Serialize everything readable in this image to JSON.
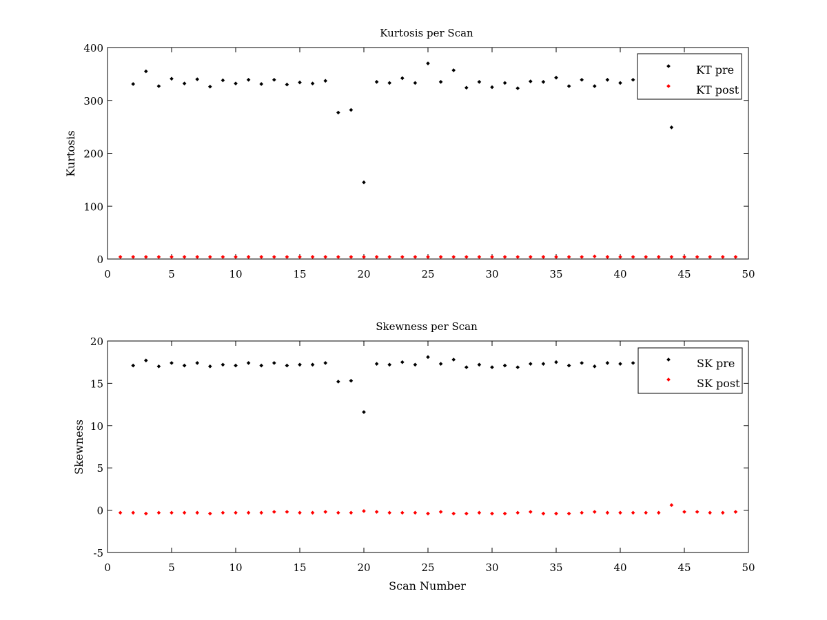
{
  "chart_data": [
    {
      "type": "scatter",
      "title": "Kurtosis per Scan",
      "xlabel": "",
      "ylabel": "Kurtosis",
      "xlim": [
        0,
        50
      ],
      "ylim": [
        0,
        400
      ],
      "xticks": [
        0,
        5,
        10,
        15,
        20,
        25,
        30,
        35,
        40,
        45,
        50
      ],
      "yticks": [
        0,
        100,
        200,
        300,
        400
      ],
      "grid": false,
      "legend_position": "top-right",
      "series": [
        {
          "name": "KT pre",
          "color": "#000000",
          "x": [
            2,
            3,
            4,
            5,
            6,
            7,
            8,
            9,
            10,
            11,
            12,
            13,
            14,
            15,
            16,
            17,
            18,
            19,
            20,
            21,
            22,
            23,
            24,
            25,
            26,
            27,
            28,
            29,
            30,
            31,
            32,
            33,
            34,
            35,
            36,
            37,
            38,
            39,
            40,
            41,
            44
          ],
          "y": [
            331,
            355,
            327,
            341,
            332,
            340,
            326,
            338,
            332,
            339,
            331,
            339,
            330,
            334,
            332,
            337,
            277,
            282,
            145,
            335,
            333,
            342,
            333,
            370,
            335,
            357,
            324,
            335,
            325,
            333,
            323,
            336,
            335,
            343,
            327,
            339,
            327,
            339,
            333,
            339,
            249
          ]
        },
        {
          "name": "KT post",
          "color": "#ff0000",
          "x": [
            1,
            2,
            3,
            4,
            5,
            6,
            7,
            8,
            9,
            10,
            11,
            12,
            13,
            14,
            15,
            16,
            17,
            18,
            19,
            20,
            21,
            22,
            23,
            24,
            25,
            26,
            27,
            28,
            29,
            30,
            31,
            32,
            33,
            34,
            35,
            36,
            37,
            38,
            39,
            40,
            41,
            42,
            43,
            44,
            45,
            46,
            47,
            48,
            49
          ],
          "y": [
            4,
            4,
            4,
            4,
            4,
            4,
            4,
            4,
            4,
            4,
            4,
            4,
            4,
            4,
            4,
            4,
            4,
            4,
            4,
            4,
            4,
            4,
            4,
            4,
            4,
            4,
            4,
            4,
            4,
            4,
            4,
            4,
            4,
            4,
            4,
            4,
            4,
            5,
            4,
            4,
            4,
            4,
            4,
            4,
            4,
            4,
            4,
            4,
            4
          ]
        }
      ]
    },
    {
      "type": "scatter",
      "title": "Skewness per Scan",
      "xlabel": "Scan Number",
      "ylabel": "Skewness",
      "xlim": [
        0,
        50
      ],
      "ylim": [
        -5,
        20
      ],
      "xticks": [
        0,
        5,
        10,
        15,
        20,
        25,
        30,
        35,
        40,
        45,
        50
      ],
      "yticks": [
        -5,
        0,
        5,
        10,
        15,
        20
      ],
      "grid": false,
      "legend_position": "top-right",
      "series": [
        {
          "name": "SK pre",
          "color": "#000000",
          "x": [
            2,
            3,
            4,
            5,
            6,
            7,
            8,
            9,
            10,
            11,
            12,
            13,
            14,
            15,
            16,
            17,
            18,
            19,
            20,
            21,
            22,
            23,
            24,
            25,
            26,
            27,
            28,
            29,
            30,
            31,
            32,
            33,
            34,
            35,
            36,
            37,
            38,
            39,
            40,
            41,
            44
          ],
          "y": [
            17.1,
            17.7,
            17.0,
            17.4,
            17.1,
            17.4,
            17.0,
            17.2,
            17.1,
            17.4,
            17.1,
            17.4,
            17.1,
            17.2,
            17.2,
            17.4,
            15.2,
            15.3,
            11.6,
            17.3,
            17.2,
            17.5,
            17.2,
            18.1,
            17.3,
            17.8,
            16.9,
            17.2,
            16.9,
            17.1,
            16.9,
            17.3,
            17.3,
            17.5,
            17.1,
            17.4,
            17.0,
            17.4,
            17.3,
            17.4,
            14.0
          ]
        },
        {
          "name": "SK post",
          "color": "#ff0000",
          "x": [
            1,
            2,
            3,
            4,
            5,
            6,
            7,
            8,
            9,
            10,
            11,
            12,
            13,
            14,
            15,
            16,
            17,
            18,
            19,
            20,
            21,
            22,
            23,
            24,
            25,
            26,
            27,
            28,
            29,
            30,
            31,
            32,
            33,
            34,
            35,
            36,
            37,
            38,
            39,
            40,
            41,
            42,
            43,
            44,
            45,
            46,
            47,
            48,
            49
          ],
          "y": [
            -0.3,
            -0.3,
            -0.4,
            -0.3,
            -0.3,
            -0.3,
            -0.3,
            -0.4,
            -0.3,
            -0.3,
            -0.3,
            -0.3,
            -0.2,
            -0.2,
            -0.3,
            -0.3,
            -0.2,
            -0.3,
            -0.3,
            -0.1,
            -0.2,
            -0.3,
            -0.3,
            -0.3,
            -0.4,
            -0.2,
            -0.4,
            -0.4,
            -0.3,
            -0.4,
            -0.4,
            -0.3,
            -0.2,
            -0.4,
            -0.4,
            -0.4,
            -0.3,
            -0.2,
            -0.3,
            -0.3,
            -0.3,
            -0.3,
            -0.3,
            0.6,
            -0.2,
            -0.2,
            -0.3,
            -0.3,
            -0.2
          ]
        }
      ]
    }
  ]
}
